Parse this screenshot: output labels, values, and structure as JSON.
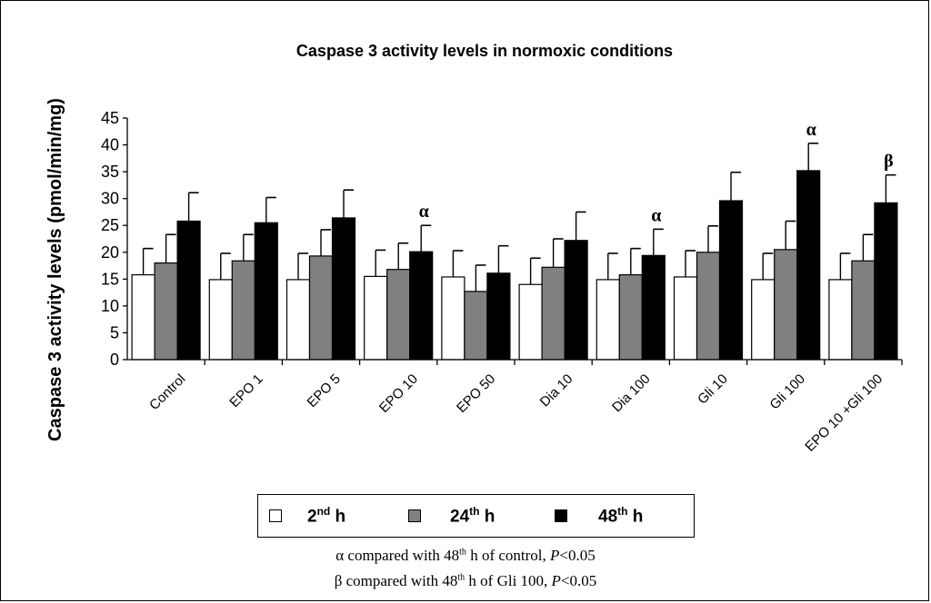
{
  "chart_data": {
    "type": "bar",
    "title": "Caspase 3 activity levels in normoxic conditions",
    "ylabel": "Caspase 3 activity levels (pmol/min/mg)",
    "xlabel": "",
    "ylim": [
      0,
      45
    ],
    "yticks": [
      0,
      5,
      10,
      15,
      20,
      25,
      30,
      35,
      40,
      45
    ],
    "categories": [
      "Control",
      "EPO 1",
      "EPO 5",
      "EPO 10",
      "EPO 50",
      "Dia 10",
      "Dia 100",
      "Gli 10",
      "Gli 100",
      "EPO 10 +Gli 100"
    ],
    "series": [
      {
        "name": "2nd h",
        "color": "#ffffff",
        "values": [
          15.8,
          14.9,
          14.9,
          15.5,
          15.4,
          14.0,
          14.9,
          15.4,
          14.9,
          14.9
        ],
        "errors": [
          4.9,
          4.9,
          4.9,
          4.9,
          4.9,
          4.9,
          4.9,
          4.9,
          4.9,
          4.9
        ]
      },
      {
        "name": "24th h",
        "color": "#808080",
        "values": [
          18.0,
          18.4,
          19.3,
          16.8,
          12.7,
          17.2,
          15.8,
          20.0,
          20.5,
          18.4
        ],
        "errors": [
          5.3,
          4.9,
          4.9,
          4.9,
          4.9,
          5.3,
          4.9,
          4.9,
          5.3,
          4.9
        ]
      },
      {
        "name": "48th h",
        "color": "#000000",
        "values": [
          25.8,
          25.5,
          26.4,
          20.1,
          16.1,
          22.2,
          19.4,
          29.6,
          35.2,
          29.2
        ],
        "errors": [
          5.3,
          4.7,
          5.2,
          4.9,
          5.1,
          5.3,
          4.9,
          5.3,
          5.1,
          5.2
        ]
      }
    ],
    "annotations": [
      {
        "category": "EPO 10",
        "series": "48th h",
        "symbol": "α"
      },
      {
        "category": "Dia 100",
        "series": "48th h",
        "symbol": "α"
      },
      {
        "category": "Gli 100",
        "series": "48th h",
        "symbol": "α"
      },
      {
        "category": "EPO 10 +Gli 100",
        "series": "48th h",
        "symbol": "β"
      }
    ],
    "legend_position": "bottom"
  },
  "legend": [
    {
      "base": "2",
      "sup": "nd",
      "rest": " h"
    },
    {
      "base": "24",
      "sup": "th",
      "rest": " h"
    },
    {
      "base": "48",
      "sup": "th",
      "rest": " h"
    }
  ],
  "footnotes": {
    "alpha": {
      "pre": "α compared with 48",
      "sup": "th",
      "mid": " h of control, ",
      "p": "P",
      "post": "<0.05"
    },
    "beta": {
      "pre": "β compared with 48",
      "sup": "th",
      "mid": " h of Gli 100, ",
      "p": "P",
      "post": "<0.05"
    }
  }
}
